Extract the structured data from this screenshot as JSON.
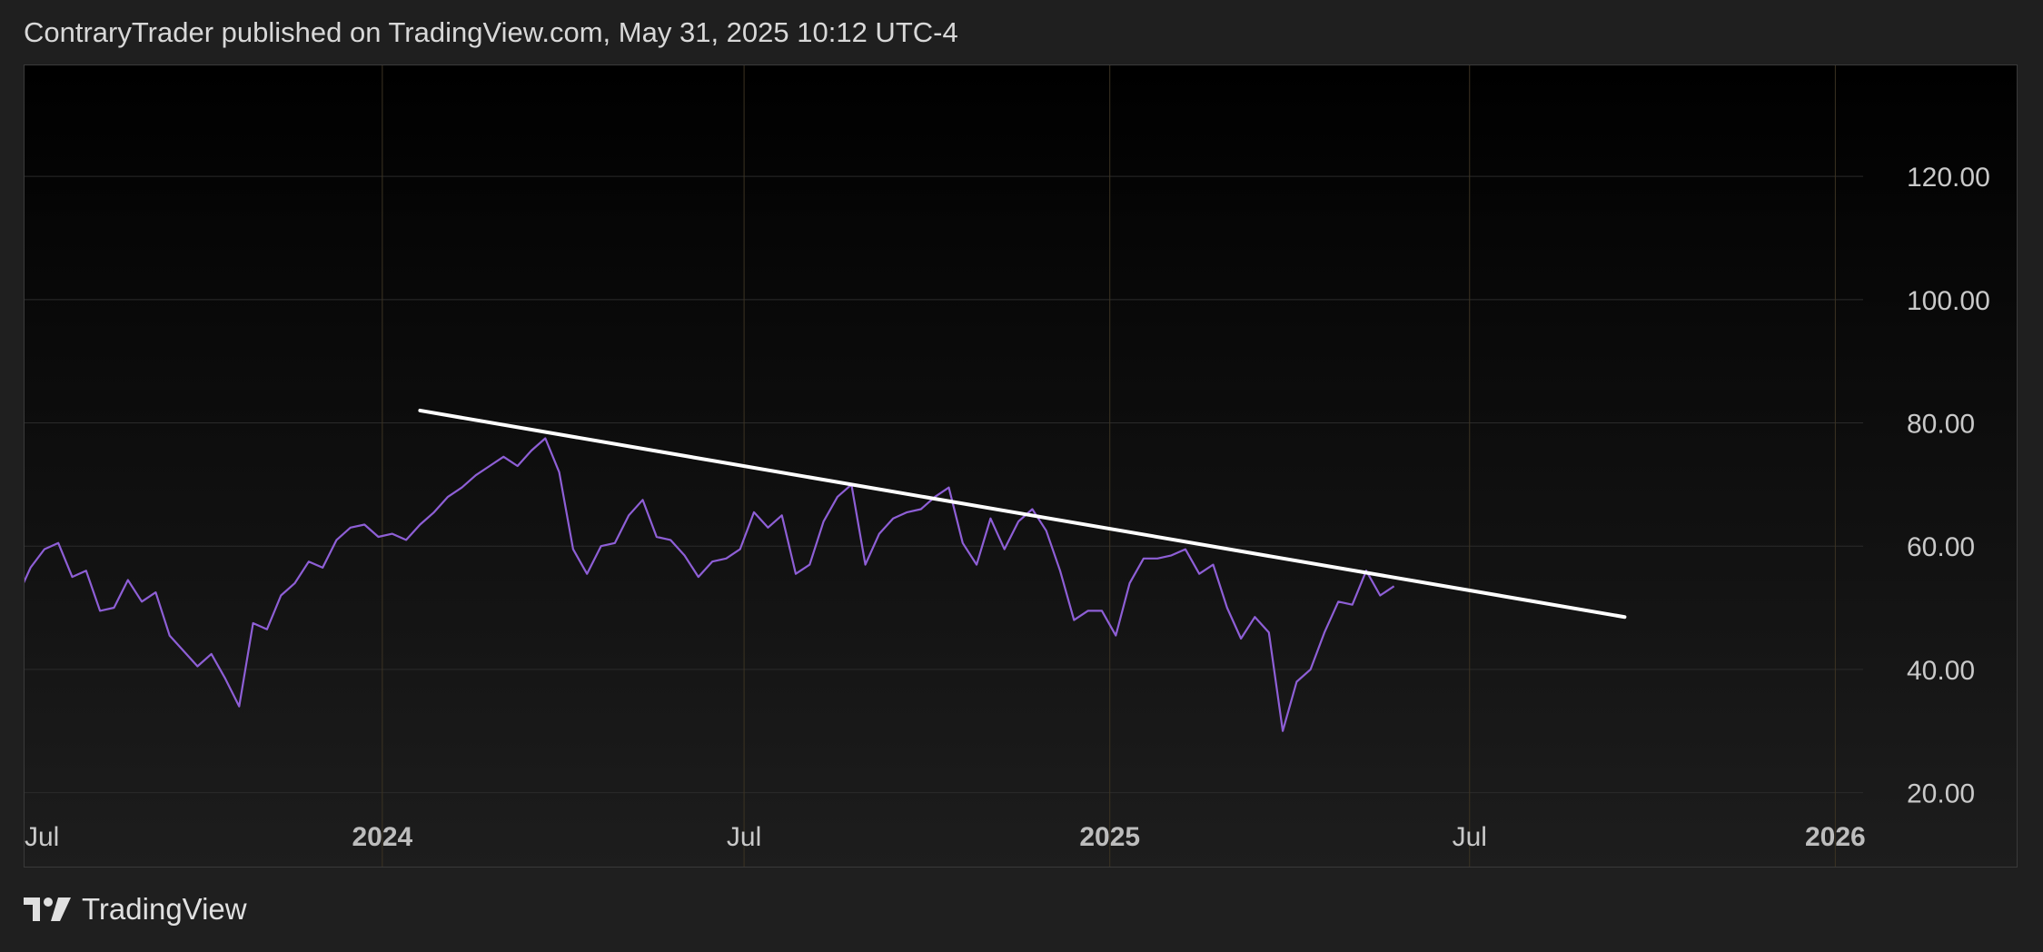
{
  "header": {
    "published_text": "ContraryTrader published on TradingView.com, May 31, 2025 10:12 UTC-4"
  },
  "footer": {
    "brand_name": "TradingView",
    "logo_icon": "tradingview-logo-icon"
  },
  "colors": {
    "series_line": "#8e5fd6",
    "trendline": "#ffffff",
    "grid": "#2b2b2b",
    "time_grid": "#3d3423",
    "axis_text": "#c9c9c9",
    "axis_text_bold": "#bdbdbd"
  },
  "chart_data": {
    "type": "line",
    "title": "",
    "xlabel": "",
    "ylabel": "",
    "x_range": [
      "2023-07-05",
      "2026-01-15"
    ],
    "ylim": [
      8,
      138
    ],
    "y_ticks": [
      "120.00",
      "100.00",
      "80.00",
      "60.00",
      "40.00",
      "20.00"
    ],
    "y_tick_values": [
      120,
      100,
      80,
      60,
      40,
      20
    ],
    "x_ticks": [
      {
        "label": "Jul",
        "date": "2023-07-01",
        "bold": false
      },
      {
        "label": "2024",
        "date": "2024-01-01",
        "bold": true
      },
      {
        "label": "Jul",
        "date": "2024-07-01",
        "bold": false
      },
      {
        "label": "2025",
        "date": "2025-01-01",
        "bold": true
      },
      {
        "label": "Jul",
        "date": "2025-07-01",
        "bold": false
      },
      {
        "label": "2026",
        "date": "2026-01-01",
        "bold": true
      }
    ],
    "grid": true,
    "series": [
      {
        "dates": [
          "2023-07-01",
          "2023-07-08",
          "2023-07-15",
          "2023-07-22",
          "2023-07-29",
          "2023-08-05",
          "2023-08-12",
          "2023-08-19",
          "2023-08-26",
          "2023-09-02",
          "2023-09-09",
          "2023-09-16",
          "2023-09-23",
          "2023-09-30",
          "2023-10-07",
          "2023-10-14",
          "2023-10-21",
          "2023-10-28",
          "2023-11-04",
          "2023-11-11",
          "2023-11-18",
          "2023-11-25",
          "2023-12-02",
          "2023-12-09",
          "2023-12-16",
          "2023-12-23",
          "2023-12-30",
          "2024-01-06",
          "2024-01-13",
          "2024-01-20",
          "2024-01-27",
          "2024-02-03",
          "2024-02-10",
          "2024-02-17",
          "2024-02-24",
          "2024-03-02",
          "2024-03-09",
          "2024-03-16",
          "2024-03-23",
          "2024-03-30",
          "2024-04-06",
          "2024-04-13",
          "2024-04-20",
          "2024-04-27",
          "2024-05-04",
          "2024-05-11",
          "2024-05-18",
          "2024-05-25",
          "2024-06-01",
          "2024-06-08",
          "2024-06-15",
          "2024-06-22",
          "2024-06-29",
          "2024-07-06",
          "2024-07-13",
          "2024-07-20",
          "2024-07-27",
          "2024-08-03",
          "2024-08-10",
          "2024-08-17",
          "2024-08-24",
          "2024-08-31",
          "2024-09-07",
          "2024-09-14",
          "2024-09-21",
          "2024-09-28",
          "2024-10-05",
          "2024-10-12",
          "2024-10-19",
          "2024-10-26",
          "2024-11-02",
          "2024-11-09",
          "2024-11-16",
          "2024-11-23",
          "2024-11-30",
          "2024-12-07",
          "2024-12-14",
          "2024-12-21",
          "2024-12-28",
          "2025-01-04",
          "2025-01-11",
          "2025-01-18",
          "2025-01-25",
          "2025-02-01",
          "2025-02-08",
          "2025-02-15",
          "2025-02-22",
          "2025-03-01",
          "2025-03-08",
          "2025-03-15",
          "2025-03-22",
          "2025-03-29",
          "2025-04-05",
          "2025-04-12",
          "2025-04-19",
          "2025-04-26",
          "2025-05-03",
          "2025-05-10",
          "2025-05-17",
          "2025-05-24",
          "2025-05-31"
        ],
        "values": [
          51.5,
          56.5,
          59.5,
          60.5,
          55,
          56,
          49.5,
          50,
          54.5,
          51,
          52.5,
          45.5,
          43,
          40.5,
          42.5,
          38.5,
          34,
          47.5,
          46.5,
          52,
          54,
          57.5,
          56.5,
          61,
          63,
          63.5,
          61.5,
          62,
          61,
          63.5,
          65.5,
          68,
          69.5,
          71.5,
          73,
          74.5,
          73,
          75.5,
          77.5,
          72,
          59.5,
          55.5,
          60,
          60.5,
          65,
          67.5,
          61.5,
          61,
          58.5,
          55,
          57.5,
          58,
          59.5,
          65.5,
          63,
          65,
          55.5,
          57,
          64,
          68,
          70,
          57,
          62,
          64.5,
          65.5,
          66,
          68,
          69.5,
          60.5,
          57,
          64.5,
          59.5,
          64,
          66,
          62.5,
          56,
          48,
          49.5,
          49.5,
          45.5,
          54,
          58,
          58,
          58.5,
          59.5,
          55.5,
          57,
          50,
          45,
          48.5,
          46,
          30,
          38,
          40,
          46,
          51,
          50.5,
          56,
          52,
          53.5,
          null
        ]
      }
    ],
    "trendline": {
      "start": {
        "date": "2024-01-20",
        "value": 82
      },
      "end": {
        "date": "2025-09-17",
        "value": 48.5
      }
    }
  }
}
